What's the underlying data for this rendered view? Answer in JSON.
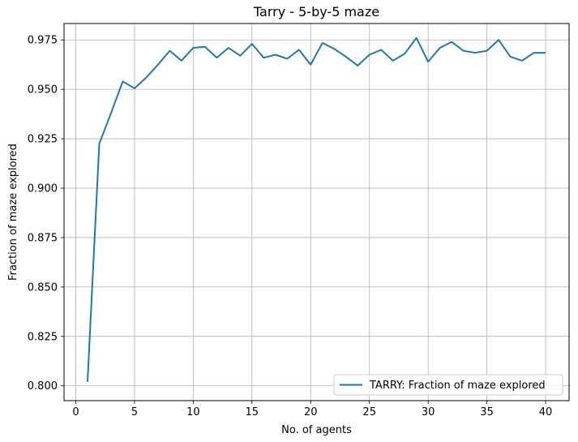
{
  "chart_data": {
    "type": "line",
    "title": "Tarry - 5-by-5 maze",
    "xlabel": "No. of agents",
    "ylabel": "Fraction of maze explored",
    "xlim": [
      -1,
      42
    ],
    "ylim": [
      0.7925,
      0.9833
    ],
    "x_ticks": [
      0,
      5,
      10,
      15,
      20,
      25,
      30,
      35,
      40
    ],
    "y_ticks": [
      0.8,
      0.825,
      0.85,
      0.875,
      0.9,
      0.925,
      0.95,
      0.975
    ],
    "x_tick_labels": [
      "0",
      "5",
      "10",
      "15",
      "20",
      "25",
      "30",
      "35",
      "40"
    ],
    "y_tick_labels": [
      "0.800",
      "0.825",
      "0.850",
      "0.875",
      "0.900",
      "0.925",
      "0.950",
      "0.975"
    ],
    "grid": true,
    "legend_position": "lower-right",
    "series": [
      {
        "name": "TARRY: Fraction of maze explored",
        "color": "#1f77b4",
        "x": [
          1,
          2,
          3,
          4,
          5,
          6,
          7,
          8,
          9,
          10,
          11,
          12,
          13,
          14,
          15,
          16,
          17,
          18,
          19,
          20,
          21,
          22,
          23,
          24,
          25,
          26,
          27,
          28,
          29,
          30,
          31,
          32,
          33,
          34,
          35,
          36,
          37,
          38,
          39,
          40
        ],
        "values": [
          0.802,
          0.9225,
          0.938,
          0.954,
          0.9505,
          0.956,
          0.9625,
          0.9695,
          0.9645,
          0.971,
          0.9715,
          0.966,
          0.971,
          0.967,
          0.973,
          0.966,
          0.9675,
          0.9655,
          0.97,
          0.9625,
          0.9735,
          0.9705,
          0.9665,
          0.962,
          0.9675,
          0.97,
          0.9645,
          0.968,
          0.976,
          0.964,
          0.971,
          0.974,
          0.9695,
          0.9685,
          0.9695,
          0.975,
          0.9665,
          0.9645,
          0.9685,
          0.9685
        ]
      }
    ]
  }
}
